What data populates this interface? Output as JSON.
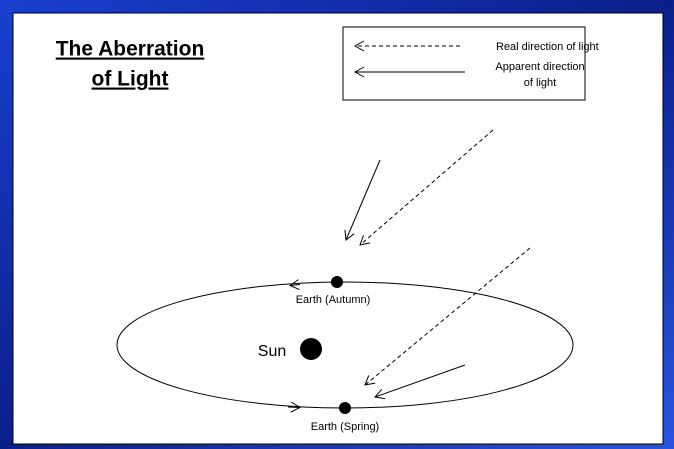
{
  "title": [
    "The Aberration",
    "of Light"
  ],
  "legend": {
    "real": "Real direction of light",
    "apparent": [
      "Apparent direction",
      "of light"
    ]
  },
  "labels": {
    "autumn": "Earth (Autumn)",
    "sun": "Sun",
    "spring": "Earth (Spring)"
  }
}
